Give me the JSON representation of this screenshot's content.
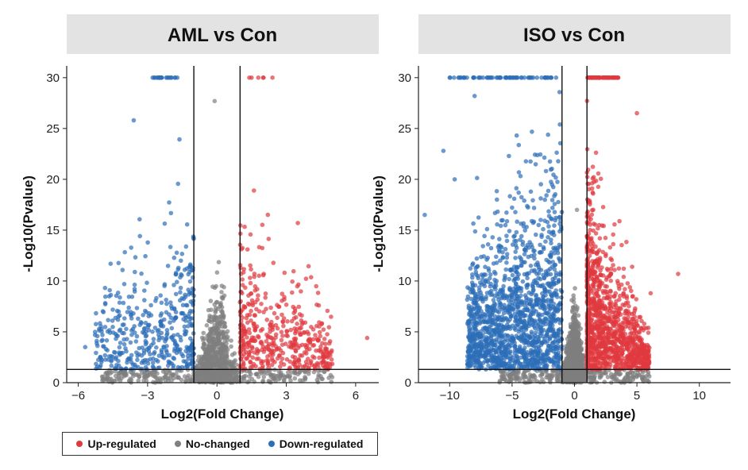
{
  "legend": {
    "items": [
      {
        "label": "Up-regulated",
        "color": "#e0393e"
      },
      {
        "label": "No-changed",
        "color": "#7f7f7f"
      },
      {
        "label": "Down-regulated",
        "color": "#2c6eb8"
      }
    ]
  },
  "chart_data": [
    {
      "type": "scatter",
      "title": "AML vs Con",
      "xlabel": "Log2(Fold Change)",
      "ylabel": "-Log10(Pvalue)",
      "xlim": [
        -6.5,
        7.0
      ],
      "ylim": [
        0,
        31
      ],
      "xticks": [
        -6,
        -3,
        0,
        3,
        6
      ],
      "xtick_labels": [
        "−6",
        "−3",
        "0",
        "3",
        "6"
      ],
      "yticks": [
        0,
        5,
        10,
        15,
        20,
        25,
        30
      ],
      "ytick_labels": [
        "0",
        "5",
        "10",
        "15",
        "20",
        "25",
        "30"
      ],
      "vlines": [
        -1,
        1
      ],
      "hline": 1.3,
      "series": [
        {
          "name": "Up-regulated",
          "color": "#e0393e",
          "x_range": [
            1,
            6.5
          ],
          "max_y": 30
        },
        {
          "name": "No-changed",
          "color": "#7f7f7f",
          "x_range": [
            -1,
            1
          ],
          "max_y": 28
        },
        {
          "name": "Down-regulated",
          "color": "#2c6eb8",
          "x_range": [
            -5.7,
            -1
          ],
          "max_y": 30
        }
      ],
      "sample_points": [
        {
          "x": -2.7,
          "y": 30,
          "group": "Down-regulated"
        },
        {
          "x": -2.4,
          "y": 30,
          "group": "Down-regulated"
        },
        {
          "x": -2.1,
          "y": 30,
          "group": "Down-regulated"
        },
        {
          "x": -1.8,
          "y": 30,
          "group": "Down-regulated"
        },
        {
          "x": -3.6,
          "y": 25.8,
          "group": "Down-regulated"
        },
        {
          "x": -5.7,
          "y": 3.5,
          "group": "Down-regulated"
        },
        {
          "x": -4.6,
          "y": 11.7,
          "group": "Down-regulated"
        },
        {
          "x": 1.4,
          "y": 30,
          "group": "Up-regulated"
        },
        {
          "x": 2.4,
          "y": 30,
          "group": "Up-regulated"
        },
        {
          "x": 6.5,
          "y": 4.4,
          "group": "Up-regulated"
        },
        {
          "x": 3.5,
          "y": 15.7,
          "group": "Up-regulated"
        },
        {
          "x": 1.6,
          "y": 18.9,
          "group": "Up-regulated"
        },
        {
          "x": -0.1,
          "y": 27.7,
          "group": "No-changed"
        }
      ]
    },
    {
      "type": "scatter",
      "title": "ISO vs Con",
      "xlabel": "Log2(Fold Change)",
      "ylabel": "-Log10(Pvalue)",
      "xlim": [
        -12.5,
        12.5
      ],
      "ylim": [
        0,
        31
      ],
      "xticks": [
        -10,
        -5,
        0,
        5,
        10
      ],
      "xtick_labels": [
        "−10",
        "−5",
        "0",
        "5",
        "10"
      ],
      "yticks": [
        0,
        5,
        10,
        15,
        20,
        25,
        30
      ],
      "ytick_labels": [
        "0",
        "5",
        "10",
        "15",
        "20",
        "25",
        "30"
      ],
      "vlines": [
        -1,
        1
      ],
      "hline": 1.3,
      "series": [
        {
          "name": "Up-regulated",
          "color": "#e0393e",
          "x_range": [
            1,
            8.3
          ],
          "max_y": 30
        },
        {
          "name": "No-changed",
          "color": "#7f7f7f",
          "x_range": [
            -1,
            1
          ],
          "max_y": 27
        },
        {
          "name": "Down-regulated",
          "color": "#2c6eb8",
          "x_range": [
            -12,
            -1
          ],
          "max_y": 30
        }
      ],
      "sample_points": [
        {
          "x": -10,
          "y": 30,
          "group": "Down-regulated"
        },
        {
          "x": -6,
          "y": 30,
          "group": "Down-regulated"
        },
        {
          "x": -3,
          "y": 30,
          "group": "Down-regulated"
        },
        {
          "x": -12,
          "y": 16.5,
          "group": "Down-regulated"
        },
        {
          "x": -10.5,
          "y": 22.8,
          "group": "Down-regulated"
        },
        {
          "x": -9.6,
          "y": 20,
          "group": "Down-regulated"
        },
        {
          "x": -8,
          "y": 28.2,
          "group": "Down-regulated"
        },
        {
          "x": 1.5,
          "y": 30,
          "group": "Up-regulated"
        },
        {
          "x": 3.5,
          "y": 30,
          "group": "Up-regulated"
        },
        {
          "x": 8.3,
          "y": 10.7,
          "group": "Up-regulated"
        },
        {
          "x": 5,
          "y": 26.5,
          "group": "Up-regulated"
        },
        {
          "x": 6.1,
          "y": 8.8,
          "group": "Up-regulated"
        },
        {
          "x": 0.2,
          "y": 17,
          "group": "No-changed"
        }
      ]
    }
  ]
}
